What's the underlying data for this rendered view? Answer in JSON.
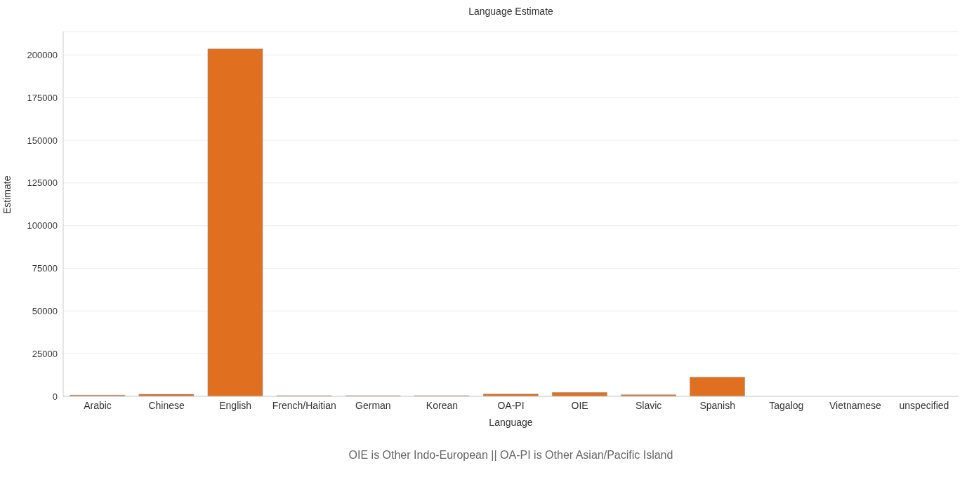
{
  "chart_data": {
    "type": "bar",
    "title": "Language Estimate",
    "xlabel": "Language",
    "ylabel": "Estimate",
    "categories": [
      "Arabic",
      "Chinese",
      "English",
      "French/Haitian",
      "German",
      "Korean",
      "OA-PI",
      "OIE",
      "Slavic",
      "Spanish",
      "Tagalog",
      "Vietnamese",
      "unspecified"
    ],
    "values": [
      700,
      1200,
      203500,
      400,
      400,
      400,
      1300,
      2300,
      900,
      11200,
      null,
      null,
      null
    ],
    "color": "#e07020",
    "ylim": [
      0,
      213700
    ],
    "yticks": [
      0,
      25000,
      50000,
      75000,
      100000,
      125000,
      150000,
      175000,
      200000
    ],
    "grid": "y",
    "legend": false,
    "annotations": [
      "OIE is Other Indo-European || OA-PI is Other Asian/Pacific Island"
    ]
  }
}
